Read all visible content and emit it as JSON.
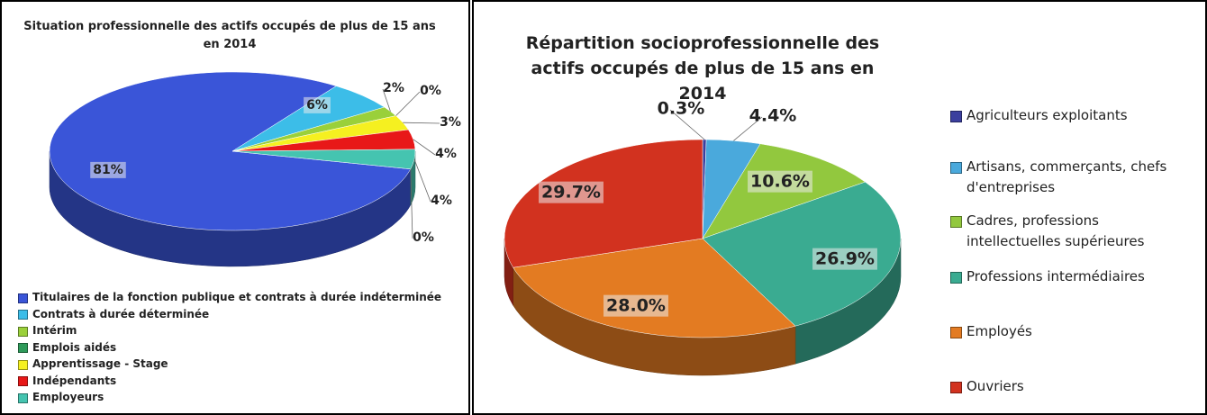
{
  "chart_data": [
    {
      "type": "pie",
      "title": "Situation professionnelle des actifs occupés de plus de 15 ans en 2014",
      "categories": [
        "Titulaires de la fonction publique et contrats à durée indéterminée",
        "Contrats à durée déterminée",
        "Intérim",
        "Emplois aidés",
        "Apprentissage - Stage",
        "Indépendants",
        "Employeurs",
        null
      ],
      "values": [
        81,
        6,
        2,
        0,
        3,
        4,
        4,
        0
      ],
      "value_labels": [
        "81%",
        "6%",
        "2%",
        "0%",
        "3%",
        "4%",
        "4%",
        "0%"
      ],
      "colors": [
        "#3a55d8",
        "#3cbde8",
        "#9ad03a",
        "#2e9a5a",
        "#f5f020",
        "#e81818",
        "#45c4b0",
        "#2a6a8a"
      ],
      "legend": "bottom-left"
    },
    {
      "type": "pie",
      "title": "Répartition socioprofessionnelle des actifs occupés de plus de 15 ans en 2014",
      "categories": [
        "Agriculteurs exploitants",
        "Artisans, commerçants, chefs d'entreprises",
        "Cadres, professions intellectuelles supérieures",
        "Professions intermédiaires",
        "Employés",
        "Ouvriers"
      ],
      "values": [
        0.3,
        4.4,
        10.6,
        26.9,
        28.0,
        29.7
      ],
      "value_labels": [
        "0.3%",
        "4.4%",
        "10.6%",
        "26.9%",
        "28.0%",
        "29.7%"
      ],
      "colors": [
        "#3b3f9e",
        "#4aa9dc",
        "#92c83e",
        "#3aab91",
        "#e37b22",
        "#d2321f"
      ],
      "legend": "right"
    }
  ]
}
